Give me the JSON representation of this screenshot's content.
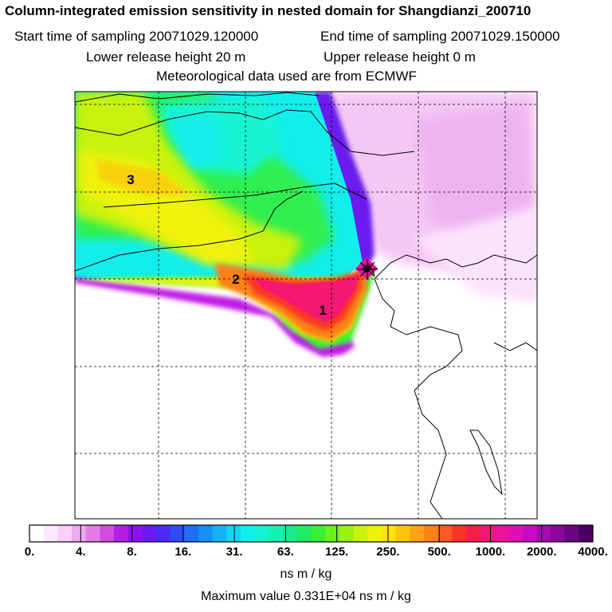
{
  "header": {
    "title": "Column-integrated emission sensitivity in nested domain for Shangdianzi_200710",
    "start_label": "Start time of sampling 20071029.120000",
    "end_label": "End time of sampling 20071029.150000",
    "lower_label": "Lower release height   20 m",
    "upper_label": "Upper release height    0 m",
    "met_label": "Meteorological data used are from ECMWF"
  },
  "map": {
    "markers": [
      "1",
      "2",
      "3"
    ]
  },
  "colorbar": {
    "labels": [
      "0.",
      "4.",
      "8.",
      "16.",
      "31.",
      "63.",
      "125.",
      "250.",
      "500.",
      "1000.",
      "2000.",
      "4000."
    ],
    "colors": [
      "#ffffff",
      "#fde9fd",
      "#f8d0f8",
      "#efaaf0",
      "#e47be8",
      "#d04ce0",
      "#b41ee6",
      "#8c10ee",
      "#6a1aee",
      "#4a2cf4",
      "#2e4cf6",
      "#1e6ef8",
      "#1490f8",
      "#12b4f6",
      "#14d4f4",
      "#12eeec",
      "#14f4d4",
      "#16f0b2",
      "#18ec8e",
      "#1eec66",
      "#36f036",
      "#6af01a",
      "#9af010",
      "#c8f20c",
      "#eef20a",
      "#fae20a",
      "#fcc40a",
      "#fca412",
      "#fc8218",
      "#fc5a20",
      "#fa3428",
      "#f81e4a",
      "#f41872",
      "#ec129a",
      "#e00eb8",
      "#c80ac6",
      "#a808b4",
      "#8a069c",
      "#6a0480",
      "#4a0262"
    ],
    "unit": "ns m / kg",
    "max_value": "Maximum value  0.331E+04 ns m / kg"
  }
}
